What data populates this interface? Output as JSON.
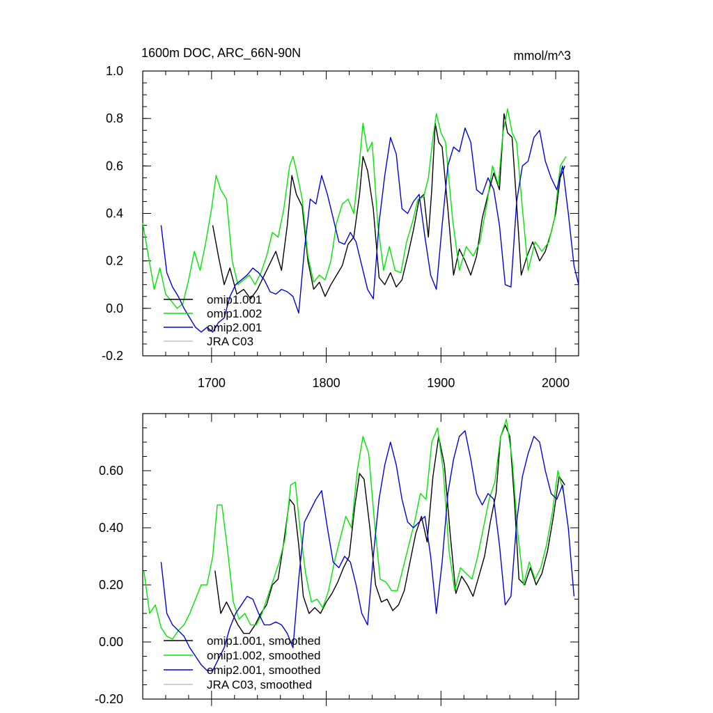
{
  "chart_data": [
    {
      "type": "line",
      "title": "1600m DOC, ARC_66N-90N",
      "units": "mmol/m^3",
      "xlim": [
        1640,
        2020
      ],
      "ylim": [
        -0.2,
        1.0
      ],
      "xticks": [
        1700,
        1800,
        1900,
        2000
      ],
      "xtick_labels": [
        "1700",
        "1800",
        "1900",
        "2000"
      ],
      "yticks": [
        -0.2,
        0.0,
        0.2,
        0.4,
        0.6,
        0.8,
        1.0
      ],
      "ytick_labels": [
        "-0.2",
        "0.0",
        "0.2",
        "0.4",
        "0.6",
        "0.8",
        "1.0"
      ],
      "legend_position": "bottom-left",
      "series": [
        {
          "name": "omip1.001",
          "color": "#000000",
          "x": [
            1701,
            1706,
            1711,
            1716,
            1722,
            1728,
            1734,
            1740,
            1746,
            1752,
            1756,
            1761,
            1766,
            1770,
            1774,
            1779,
            1784,
            1789,
            1794,
            1799,
            1804,
            1809,
            1814,
            1819,
            1824,
            1829,
            1832,
            1836,
            1841,
            1846,
            1851,
            1856,
            1861,
            1866,
            1871,
            1876,
            1881,
            1885,
            1889,
            1892,
            1895,
            1898,
            1901,
            1906,
            1911,
            1916,
            1921,
            1926,
            1931,
            1936,
            1941,
            1946,
            1951,
            1955,
            1958,
            1962,
            1966,
            1970,
            1975,
            1980,
            1986,
            1991,
            1996,
            2000,
            2004,
            2008
          ],
          "y": [
            0.35,
            0.22,
            0.1,
            0.17,
            0.06,
            0.08,
            0.04,
            0.08,
            0.14,
            0.2,
            0.24,
            0.16,
            0.35,
            0.56,
            0.48,
            0.43,
            0.2,
            0.08,
            0.11,
            0.05,
            0.1,
            0.14,
            0.18,
            0.27,
            0.3,
            0.48,
            0.64,
            0.58,
            0.42,
            0.13,
            0.1,
            0.15,
            0.09,
            0.12,
            0.22,
            0.33,
            0.46,
            0.48,
            0.3,
            0.5,
            0.78,
            0.7,
            0.68,
            0.42,
            0.14,
            0.25,
            0.2,
            0.14,
            0.22,
            0.38,
            0.48,
            0.57,
            0.5,
            0.82,
            0.74,
            0.72,
            0.44,
            0.14,
            0.22,
            0.28,
            0.2,
            0.24,
            0.32,
            0.4,
            0.55,
            0.6
          ]
        },
        {
          "name": "omip1.002",
          "color": "#00e600",
          "x": [
            1640,
            1645,
            1650,
            1655,
            1660,
            1665,
            1670,
            1675,
            1680,
            1685,
            1690,
            1695,
            1700,
            1704,
            1708,
            1713,
            1718,
            1723,
            1728,
            1733,
            1738,
            1743,
            1748,
            1753,
            1758,
            1763,
            1768,
            1771,
            1774,
            1779,
            1784,
            1789,
            1794,
            1799,
            1804,
            1809,
            1814,
            1819,
            1824,
            1829,
            1832,
            1836,
            1840,
            1845,
            1850,
            1855,
            1860,
            1865,
            1870,
            1875,
            1880,
            1885,
            1889,
            1893,
            1896,
            1900,
            1904,
            1910,
            1916,
            1922,
            1928,
            1934,
            1940,
            1945,
            1950,
            1954,
            1958,
            1962,
            1966,
            1971,
            1976,
            1982,
            1988,
            1994,
            1999,
            2004,
            2009
          ],
          "y": [
            0.36,
            0.22,
            0.08,
            0.17,
            0.06,
            0.03,
            0.0,
            0.02,
            0.12,
            0.24,
            0.16,
            0.28,
            0.42,
            0.56,
            0.5,
            0.46,
            0.2,
            0.1,
            0.12,
            0.14,
            0.1,
            0.15,
            0.22,
            0.32,
            0.3,
            0.42,
            0.6,
            0.64,
            0.58,
            0.46,
            0.22,
            0.11,
            0.14,
            0.12,
            0.2,
            0.36,
            0.44,
            0.46,
            0.4,
            0.62,
            0.78,
            0.66,
            0.7,
            0.35,
            0.16,
            0.26,
            0.16,
            0.15,
            0.28,
            0.36,
            0.46,
            0.47,
            0.55,
            0.72,
            0.82,
            0.74,
            0.7,
            0.38,
            0.16,
            0.26,
            0.22,
            0.28,
            0.44,
            0.6,
            0.52,
            0.74,
            0.84,
            0.74,
            0.7,
            0.42,
            0.16,
            0.28,
            0.24,
            0.28,
            0.38,
            0.6,
            0.64
          ]
        },
        {
          "name": "omip2.001",
          "color": "#0000dd",
          "x": [
            1656,
            1661,
            1666,
            1671,
            1676,
            1681,
            1686,
            1691,
            1696,
            1701,
            1706,
            1711,
            1716,
            1721,
            1726,
            1731,
            1736,
            1741,
            1746,
            1751,
            1756,
            1761,
            1766,
            1771,
            1776,
            1781,
            1786,
            1791,
            1796,
            1801,
            1806,
            1811,
            1816,
            1821,
            1826,
            1831,
            1836,
            1841,
            1846,
            1851,
            1856,
            1861,
            1866,
            1871,
            1876,
            1881,
            1886,
            1891,
            1896,
            1901,
            1906,
            1911,
            1916,
            1921,
            1926,
            1931,
            1936,
            1941,
            1946,
            1951,
            1956,
            1961,
            1966,
            1971,
            1976,
            1981,
            1986,
            1991,
            1996,
            2001,
            2006,
            2011,
            2016,
            2020
          ],
          "y": [
            0.35,
            0.15,
            0.09,
            0.05,
            0.0,
            -0.04,
            -0.08,
            -0.1,
            -0.08,
            -0.1,
            -0.06,
            -0.04,
            0.05,
            0.1,
            0.12,
            0.14,
            0.17,
            0.15,
            0.12,
            0.07,
            0.06,
            0.08,
            0.07,
            0.05,
            -0.02,
            0.25,
            0.46,
            0.44,
            0.56,
            0.48,
            0.38,
            0.28,
            0.27,
            0.32,
            0.28,
            0.18,
            0.08,
            0.04,
            0.36,
            0.56,
            0.72,
            0.65,
            0.42,
            0.4,
            0.45,
            0.48,
            0.3,
            0.14,
            0.08,
            0.35,
            0.6,
            0.68,
            0.66,
            0.76,
            0.7,
            0.5,
            0.48,
            0.55,
            0.5,
            0.35,
            0.1,
            0.09,
            0.45,
            0.6,
            0.62,
            0.72,
            0.75,
            0.62,
            0.55,
            0.5,
            0.6,
            0.4,
            0.18,
            0.1
          ]
        },
        {
          "name": "JRA C03",
          "color": "#c0c0c0",
          "x": [],
          "y": []
        }
      ]
    },
    {
      "type": "line",
      "title": "",
      "xlim": [
        1640,
        2020
      ],
      "ylim": [
        -0.2,
        0.8
      ],
      "xticks": [
        1700,
        1800,
        1900,
        2000
      ],
      "yticks": [
        -0.2,
        0.0,
        0.2,
        0.4,
        0.6
      ],
      "ytick_labels": [
        "-0.20",
        "0.00",
        "0.20",
        "0.40",
        "0.60"
      ],
      "legend_position": "bottom-left",
      "series": [
        {
          "name": "omip1.001, smoothed",
          "color": "#000000",
          "x": [
            1703,
            1708,
            1713,
            1718,
            1723,
            1728,
            1733,
            1738,
            1743,
            1748,
            1753,
            1758,
            1763,
            1768,
            1772,
            1776,
            1780,
            1785,
            1790,
            1795,
            1800,
            1805,
            1810,
            1815,
            1820,
            1825,
            1829,
            1833,
            1838,
            1843,
            1848,
            1853,
            1858,
            1863,
            1868,
            1873,
            1878,
            1883,
            1888,
            1893,
            1898,
            1903,
            1908,
            1913,
            1918,
            1923,
            1928,
            1933,
            1938,
            1943,
            1948,
            1952,
            1956,
            1960,
            1964,
            1968,
            1973,
            1978,
            1983,
            1988,
            1993,
            1998,
            2003,
            2008
          ],
          "y": [
            0.25,
            0.1,
            0.14,
            0.1,
            0.06,
            0.03,
            0.03,
            0.06,
            0.1,
            0.13,
            0.2,
            0.22,
            0.35,
            0.5,
            0.48,
            0.34,
            0.16,
            0.1,
            0.12,
            0.1,
            0.14,
            0.17,
            0.21,
            0.26,
            0.3,
            0.48,
            0.59,
            0.57,
            0.4,
            0.2,
            0.14,
            0.15,
            0.11,
            0.13,
            0.18,
            0.28,
            0.38,
            0.44,
            0.35,
            0.58,
            0.72,
            0.62,
            0.38,
            0.17,
            0.23,
            0.2,
            0.16,
            0.23,
            0.3,
            0.42,
            0.52,
            0.72,
            0.76,
            0.72,
            0.5,
            0.22,
            0.2,
            0.26,
            0.2,
            0.24,
            0.32,
            0.44,
            0.58,
            0.55
          ]
        },
        {
          "name": "omip1.002, smoothed",
          "color": "#00e600",
          "x": [
            1641,
            1646,
            1651,
            1656,
            1661,
            1666,
            1671,
            1676,
            1681,
            1686,
            1691,
            1696,
            1701,
            1705,
            1709,
            1714,
            1719,
            1724,
            1729,
            1734,
            1739,
            1744,
            1749,
            1754,
            1759,
            1764,
            1769,
            1773,
            1777,
            1782,
            1787,
            1792,
            1797,
            1802,
            1807,
            1812,
            1817,
            1822,
            1827,
            1832,
            1837,
            1842,
            1847,
            1852,
            1857,
            1862,
            1867,
            1872,
            1877,
            1882,
            1887,
            1892,
            1897,
            1902,
            1907,
            1912,
            1917,
            1922,
            1927,
            1932,
            1937,
            1942,
            1947,
            1952,
            1957,
            1962,
            1967,
            1972,
            1977,
            1982,
            1987,
            1992,
            1997,
            2002,
            2007
          ],
          "y": [
            0.25,
            0.1,
            0.13,
            0.05,
            0.02,
            0.01,
            0.04,
            0.06,
            0.1,
            0.15,
            0.2,
            0.2,
            0.3,
            0.48,
            0.48,
            0.32,
            0.14,
            0.08,
            0.1,
            0.06,
            0.06,
            0.1,
            0.16,
            0.22,
            0.28,
            0.36,
            0.55,
            0.56,
            0.4,
            0.24,
            0.14,
            0.15,
            0.12,
            0.18,
            0.28,
            0.36,
            0.44,
            0.4,
            0.6,
            0.72,
            0.66,
            0.42,
            0.22,
            0.21,
            0.18,
            0.18,
            0.26,
            0.34,
            0.42,
            0.52,
            0.5,
            0.7,
            0.75,
            0.6,
            0.32,
            0.18,
            0.26,
            0.24,
            0.22,
            0.3,
            0.4,
            0.5,
            0.56,
            0.72,
            0.78,
            0.64,
            0.38,
            0.2,
            0.28,
            0.22,
            0.26,
            0.34,
            0.45,
            0.6,
            0.52
          ]
        },
        {
          "name": "omip2.001, smoothed",
          "color": "#0000dd",
          "x": [
            1656,
            1661,
            1666,
            1671,
            1676,
            1681,
            1686,
            1691,
            1696,
            1701,
            1706,
            1711,
            1716,
            1721,
            1726,
            1731,
            1736,
            1741,
            1746,
            1751,
            1756,
            1761,
            1766,
            1771,
            1776,
            1781,
            1786,
            1791,
            1796,
            1801,
            1806,
            1811,
            1816,
            1821,
            1826,
            1831,
            1836,
            1841,
            1846,
            1851,
            1856,
            1861,
            1866,
            1871,
            1876,
            1881,
            1886,
            1891,
            1896,
            1901,
            1906,
            1911,
            1916,
            1921,
            1926,
            1931,
            1936,
            1941,
            1946,
            1951,
            1956,
            1961,
            1966,
            1971,
            1976,
            1981,
            1986,
            1991,
            1996,
            2001,
            2006,
            2011,
            2016
          ],
          "y": [
            0.28,
            0.1,
            0.06,
            0.04,
            0.02,
            -0.02,
            -0.05,
            -0.08,
            -0.1,
            -0.1,
            -0.06,
            -0.02,
            0.05,
            0.1,
            0.13,
            0.16,
            0.15,
            0.1,
            0.06,
            0.06,
            0.07,
            0.06,
            0.03,
            -0.02,
            0.22,
            0.42,
            0.46,
            0.5,
            0.53,
            0.4,
            0.28,
            0.26,
            0.3,
            0.28,
            0.2,
            0.1,
            0.06,
            0.3,
            0.5,
            0.62,
            0.7,
            0.62,
            0.5,
            0.42,
            0.4,
            0.42,
            0.44,
            0.3,
            0.1,
            0.28,
            0.52,
            0.64,
            0.72,
            0.74,
            0.64,
            0.52,
            0.48,
            0.52,
            0.5,
            0.34,
            0.13,
            0.16,
            0.42,
            0.58,
            0.66,
            0.72,
            0.7,
            0.6,
            0.52,
            0.5,
            0.55,
            0.4,
            0.16
          ]
        },
        {
          "name": "JRA C03, smoothed",
          "color": "#c0c0c0",
          "x": [],
          "y": []
        }
      ]
    }
  ]
}
